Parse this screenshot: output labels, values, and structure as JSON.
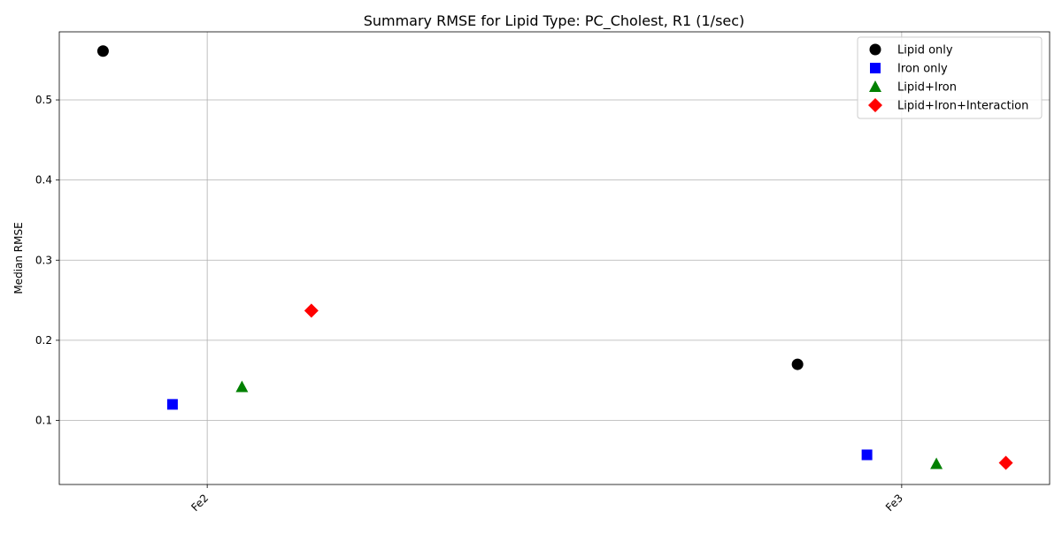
{
  "chart_data": {
    "type": "scatter",
    "title": "Summary RMSE for Lipid Type: PC_Cholest, R1 (1/sec)",
    "xlabel": "",
    "ylabel": "Median RMSE",
    "categories": [
      "Fe2",
      "Fe3"
    ],
    "xlim": [
      -0.213,
      1.213
    ],
    "ylim": [
      0.02,
      0.585
    ],
    "yticks": [
      0.1,
      0.2,
      0.3,
      0.4,
      0.5
    ],
    "grid": true,
    "legend_position": "top-right",
    "series": [
      {
        "name": "Lipid only",
        "marker": "circle",
        "color": "#000000",
        "offset": -0.15,
        "values": [
          0.561,
          0.17
        ]
      },
      {
        "name": "Iron only",
        "marker": "square",
        "color": "#0000ff",
        "offset": -0.05,
        "values": [
          0.12,
          0.057
        ]
      },
      {
        "name": "Lipid+Iron",
        "marker": "triangle",
        "color": "#008000",
        "offset": 0.05,
        "values": [
          0.142,
          0.046
        ]
      },
      {
        "name": "Lipid+Iron+Interaction",
        "marker": "diamond",
        "color": "#ff0000",
        "offset": 0.15,
        "values": [
          0.237,
          0.047
        ]
      }
    ]
  }
}
